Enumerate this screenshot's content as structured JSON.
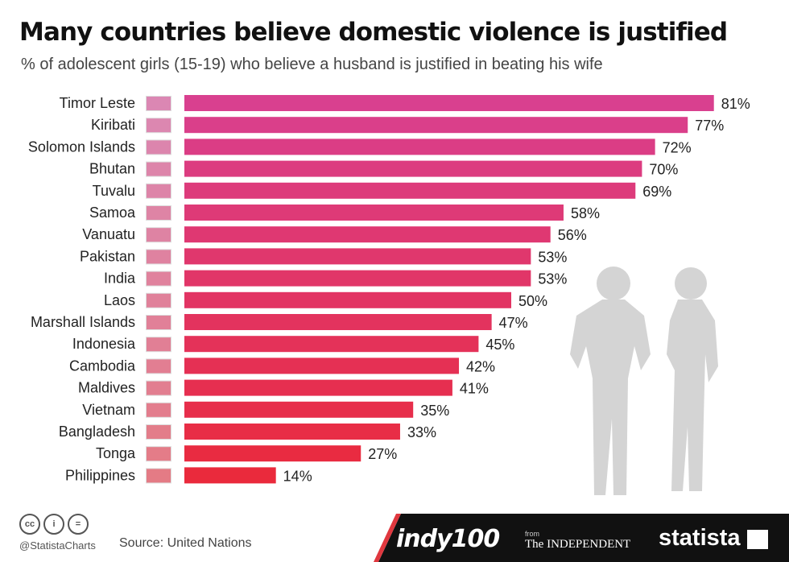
{
  "title": "Many countries believe domestic violence is justified",
  "subtitle": "% of adolescent girls (15-19) who believe a husband is justified in beating his wife",
  "chart_data": {
    "type": "bar",
    "orientation": "horizontal",
    "categories": [
      "Timor Leste",
      "Kiribati",
      "Solomon Islands",
      "Bhutan",
      "Tuvalu",
      "Samoa",
      "Vanuatu",
      "Pakistan",
      "India",
      "Laos",
      "Marshall Islands",
      "Indonesia",
      "Cambodia",
      "Maldives",
      "Vietnam",
      "Bangladesh",
      "Tonga",
      "Philippines"
    ],
    "values": [
      81,
      77,
      72,
      70,
      69,
      58,
      56,
      53,
      53,
      50,
      47,
      45,
      42,
      41,
      35,
      33,
      27,
      14
    ],
    "value_labels": [
      "81%",
      "77%",
      "72%",
      "70%",
      "69%",
      "58%",
      "56%",
      "53%",
      "53%",
      "50%",
      "47%",
      "45%",
      "42%",
      "41%",
      "35%",
      "33%",
      "27%",
      "14%"
    ],
    "xlim": [
      0,
      81
    ],
    "grid": false,
    "colors": {
      "top": "#d9408f",
      "bottom": "#ea2a3c"
    }
  },
  "flags": [
    "timor-leste-flag-icon",
    "kiribati-flag-icon",
    "solomon-islands-flag-icon",
    "bhutan-flag-icon",
    "tuvalu-flag-icon",
    "samoa-flag-icon",
    "vanuatu-flag-icon",
    "pakistan-flag-icon",
    "india-flag-icon",
    "laos-flag-icon",
    "marshall-islands-flag-icon",
    "indonesia-flag-icon",
    "cambodia-flag-icon",
    "maldives-flag-icon",
    "vietnam-flag-icon",
    "bangladesh-flag-icon",
    "tonga-flag-icon",
    "philippines-flag-icon"
  ],
  "footer": {
    "handle": "@StatistaCharts",
    "source": "Source: United Nations",
    "brand_indy": "indy100",
    "from": "from",
    "independent": "The INDEPENDENT",
    "statista": "statista",
    "cc_icons": [
      "cc-icon",
      "attribution-icon",
      "no-derivatives-icon"
    ],
    "bg_color": "#111111",
    "accent_color": "#e0383f"
  }
}
